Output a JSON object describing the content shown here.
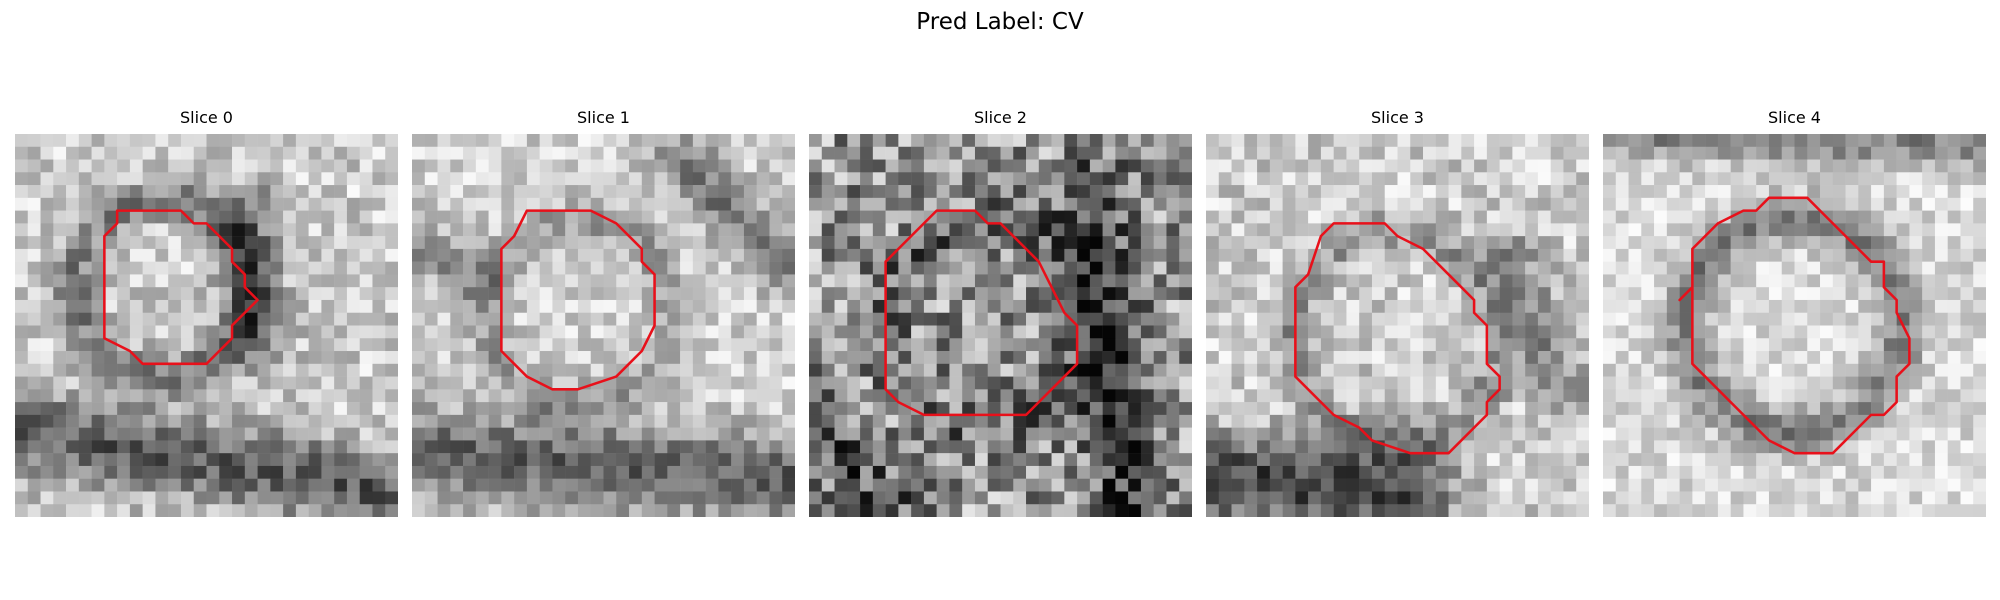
{
  "figure": {
    "title": "Pred Label: CV"
  },
  "panels": [
    {
      "title": "Slice 0"
    },
    {
      "title": "Slice 1"
    },
    {
      "title": "Slice 2"
    },
    {
      "title": "Slice 3"
    },
    {
      "title": "Slice 4"
    }
  ],
  "colors": {
    "contour": "#e8101a"
  }
}
